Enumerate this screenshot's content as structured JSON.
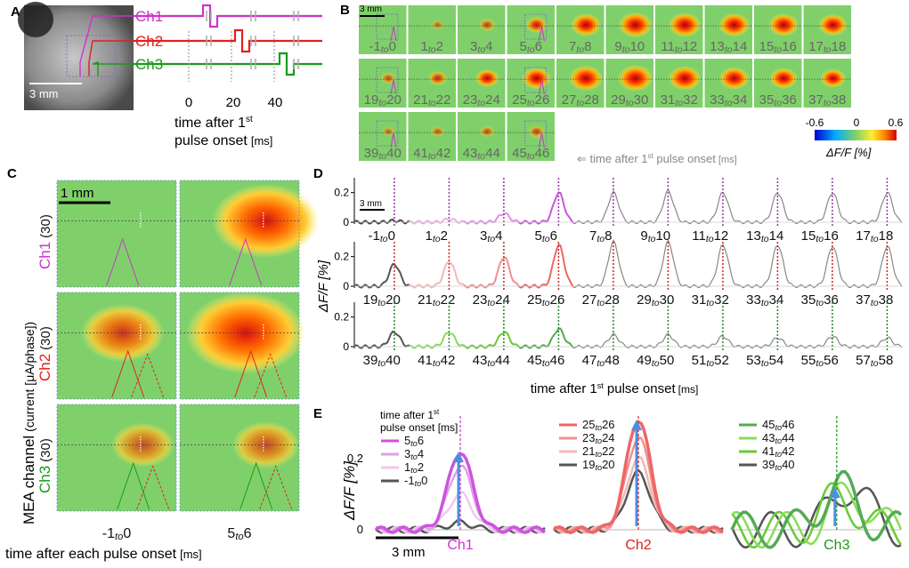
{
  "figure": {
    "panels": {
      "A": {
        "label": "A",
        "scale_bar": "3 mm",
        "channels": [
          {
            "name": "Ch1",
            "color": "#cc33cc"
          },
          {
            "name": "Ch2",
            "color": "#e02020"
          },
          {
            "name": "Ch3",
            "color": "#1a9a1a"
          }
        ],
        "time_ticks": [
          "0",
          "20",
          "40"
        ],
        "xlabel_line1": "time after 1",
        "xlabel_sup": "st",
        "xlabel_line2": "pulse onset",
        "xlabel_unit": "[ms]"
      },
      "B": {
        "label": "B",
        "scale_bar": "3 mm",
        "frames": [
          {
            "a": "-1",
            "b": "0"
          },
          {
            "a": "1",
            "b": "2"
          },
          {
            "a": "3",
            "b": "4"
          },
          {
            "a": "5",
            "b": "6"
          },
          {
            "a": "7",
            "b": "8"
          },
          {
            "a": "9",
            "b": "10"
          },
          {
            "a": "11",
            "b": "12"
          },
          {
            "a": "13",
            "b": "14"
          },
          {
            "a": "15",
            "b": "16"
          },
          {
            "a": "17",
            "b": "18"
          },
          {
            "a": "19",
            "b": "20"
          },
          {
            "a": "21",
            "b": "22"
          },
          {
            "a": "23",
            "b": "24"
          },
          {
            "a": "25",
            "b": "26"
          },
          {
            "a": "27",
            "b": "28"
          },
          {
            "a": "29",
            "b": "30"
          },
          {
            "a": "31",
            "b": "32"
          },
          {
            "a": "33",
            "b": "34"
          },
          {
            "a": "35",
            "b": "36"
          },
          {
            "a": "37",
            "b": "38"
          },
          {
            "a": "39",
            "b": "40"
          },
          {
            "a": "41",
            "b": "42"
          },
          {
            "a": "43",
            "b": "44"
          },
          {
            "a": "45",
            "b": "46"
          }
        ],
        "to_word": "to",
        "frame_intensity": [
          0,
          0.1,
          0.25,
          0.45,
          0.8,
          0.95,
          0.9,
          0.85,
          0.8,
          0.75,
          0.2,
          0.35,
          0.55,
          0.75,
          0.95,
          1,
          0.9,
          0.8,
          0.7,
          0.6,
          0.1,
          0.15,
          0.2,
          0.25
        ],
        "colorbar_ticks": [
          "-0.6",
          "0",
          "0.6"
        ],
        "colorbar_label": "ΔF/F [%]",
        "arrow_text": "time after 1",
        "arrow_sup": "st",
        "arrow_text2": " pulse onset",
        "arrow_unit": "[ms]"
      },
      "C": {
        "label": "C",
        "scale_bar": "1 mm",
        "ylabel_main": "MEA channel",
        "ylabel_unit": "(current [μA/phase])",
        "rows": [
          {
            "channel": "Ch1",
            "current": "(30)",
            "color": "#cc33cc",
            "intensity": [
              0.05,
              0.85
            ]
          },
          {
            "channel": "Ch2",
            "current": "(30)",
            "color": "#e02020",
            "intensity": [
              0.55,
              1.0
            ]
          },
          {
            "channel": "Ch3",
            "current": "(30)",
            "color": "#1a9a1a",
            "intensity": [
              0.3,
              0.35
            ]
          }
        ],
        "columns": [
          {
            "a": "-1",
            "b": "0"
          },
          {
            "a": "5",
            "b": "6"
          }
        ],
        "to_word": "to",
        "xlabel": "time after each pulse onset",
        "xlabel_unit": "[ms]"
      },
      "D": {
        "label": "D",
        "scale_bar": "3 mm",
        "ylabel": "ΔF/F [%]",
        "yticks": [
          "0",
          "0.2"
        ],
        "yticks_row3": [
          "0",
          "0.2"
        ],
        "xlabel": "time after 1",
        "xlabel_sup": "st",
        "xlabel_rest": " pulse onset",
        "xlabel_unit": "[ms]",
        "to_word": "to",
        "rows": [
          {
            "labels": [
              {
                "a": "-1",
                "b": "0"
              },
              {
                "a": "1",
                "b": "2"
              },
              {
                "a": "3",
                "b": "4"
              },
              {
                "a": "5",
                "b": "6"
              },
              {
                "a": "7",
                "b": "8"
              },
              {
                "a": "9",
                "b": "10"
              },
              {
                "a": "11",
                "b": "12"
              },
              {
                "a": "13",
                "b": "14"
              },
              {
                "a": "15",
                "b": "16"
              },
              {
                "a": "17",
                "b": "18"
              }
            ],
            "peak_height": [
              0.01,
              0.02,
              0.06,
              0.2,
              0.2,
              0.21,
              0.2,
              0.2,
              0.2,
              0.2
            ]
          },
          {
            "labels": [
              {
                "a": "19",
                "b": "20"
              },
              {
                "a": "21",
                "b": "22"
              },
              {
                "a": "23",
                "b": "24"
              },
              {
                "a": "25",
                "b": "26"
              },
              {
                "a": "27",
                "b": "28"
              },
              {
                "a": "29",
                "b": "30"
              },
              {
                "a": "31",
                "b": "32"
              },
              {
                "a": "33",
                "b": "34"
              },
              {
                "a": "35",
                "b": "36"
              },
              {
                "a": "37",
                "b": "38"
              }
            ],
            "peak_height": [
              0.15,
              0.17,
              0.2,
              0.28,
              0.3,
              0.3,
              0.28,
              0.28,
              0.27,
              0.27
            ]
          },
          {
            "labels": [
              {
                "a": "39",
                "b": "40"
              },
              {
                "a": "41",
                "b": "42"
              },
              {
                "a": "43",
                "b": "44"
              },
              {
                "a": "45",
                "b": "46"
              },
              {
                "a": "47",
                "b": "48"
              },
              {
                "a": "49",
                "b": "50"
              },
              {
                "a": "51",
                "b": "52"
              },
              {
                "a": "53",
                "b": "54"
              },
              {
                "a": "55",
                "b": "56"
              },
              {
                "a": "57",
                "b": "58"
              }
            ],
            "peak_height": [
              0.1,
              0.1,
              0.1,
              0.12,
              0.08,
              0.08,
              0.07,
              0.06,
              0.07,
              0.06
            ]
          }
        ]
      },
      "E": {
        "label": "E",
        "ylabel": "ΔF/F [%]",
        "yticks": [
          "0",
          "0.2"
        ],
        "legend_title1": "time after 1",
        "legend_sup": "st",
        "legend_title2": "pulse onset [ms]",
        "to_word": "to",
        "scale_bar": "3 mm",
        "groups": [
          {
            "channel": "Ch1",
            "color": "#cc33cc",
            "legend": [
              {
                "a": "5",
                "b": "6",
                "color": "#cc55dd"
              },
              {
                "a": "3",
                "b": "4",
                "color": "#e0a0e8"
              },
              {
                "a": "1",
                "b": "2",
                "color": "#f0c8f0"
              },
              {
                "a": "-1",
                "b": "0",
                "color": "#555555"
              }
            ],
            "peaks": [
              0.22,
              0.18,
              0.1,
              0.02
            ]
          },
          {
            "channel": "Ch2",
            "color": "#e02020",
            "legend": [
              {
                "a": "25",
                "b": "26",
                "color": "#ee6666"
              },
              {
                "a": "23",
                "b": "24",
                "color": "#f09090"
              },
              {
                "a": "21",
                "b": "22",
                "color": "#f5b8b8"
              },
              {
                "a": "19",
                "b": "20",
                "color": "#555555"
              }
            ],
            "peaks": [
              0.31,
              0.26,
              0.2,
              0.16
            ]
          },
          {
            "channel": "Ch3",
            "color": "#1a9a1a",
            "legend": [
              {
                "a": "45",
                "b": "46",
                "color": "#55aa55"
              },
              {
                "a": "43",
                "b": "44",
                "color": "#88dd55"
              },
              {
                "a": "41",
                "b": "42",
                "color": "#66cc33"
              },
              {
                "a": "39",
                "b": "40",
                "color": "#555555"
              }
            ],
            "peaks": [
              0.12,
              0.1,
              0.09,
              0.12
            ]
          }
        ]
      }
    }
  }
}
